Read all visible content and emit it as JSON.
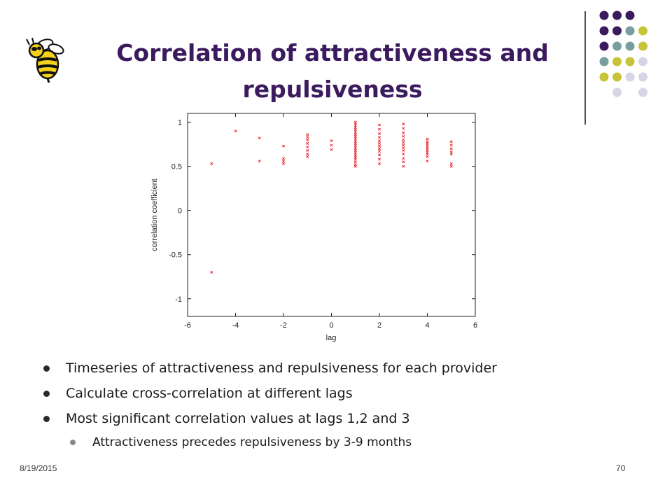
{
  "slide": {
    "title_line1": "Correlation of attractiveness and",
    "title_line2": "repulsiveness",
    "date": "8/19/2015",
    "page_number": "70",
    "title_color": "#3b1a5e"
  },
  "logo": {
    "icon": "yellow-jacket-bee-icon"
  },
  "decoration": {
    "dot_colors": [
      "#3b1a5e",
      "#7a9e9f",
      "#c8c43a",
      "#d6d5e8"
    ]
  },
  "bullets": [
    {
      "text": "Timeseries of attractiveness and repulsiveness for each provider",
      "level": 1
    },
    {
      "text": "Calculate cross-correlation at different lags",
      "level": 1
    },
    {
      "text": "Most significant correlation values at lags 1,2 and 3",
      "level": 1
    },
    {
      "text": "Attractiveness precedes repulsiveness by 3-9 months",
      "level": 2
    }
  ],
  "chart_data": {
    "type": "scatter",
    "xlabel": "lag",
    "ylabel": "correlation coefficient",
    "xlim": [
      -6,
      6
    ],
    "ylim": [
      -1.2,
      1.1
    ],
    "xticks": [
      -6,
      -4,
      -2,
      0,
      2,
      4,
      6
    ],
    "yticks": [
      -1,
      -0.5,
      0,
      0.5,
      1
    ],
    "ytick_labels": [
      "-1",
      "-0.5",
      "0",
      "0.5",
      "1"
    ],
    "marker_color": "#e8202a",
    "grid": false,
    "points": [
      [
        -5,
        0.53
      ],
      [
        -5,
        -0.7
      ],
      [
        -4,
        0.9
      ],
      [
        -3,
        0.82
      ],
      [
        -3,
        0.56
      ],
      [
        -2,
        0.73
      ],
      [
        -2,
        0.59
      ],
      [
        -2,
        0.56
      ],
      [
        -2,
        0.53
      ],
      [
        -1,
        0.86
      ],
      [
        -1,
        0.83
      ],
      [
        -1,
        0.8
      ],
      [
        -1,
        0.76
      ],
      [
        -1,
        0.72
      ],
      [
        -1,
        0.68
      ],
      [
        -1,
        0.64
      ],
      [
        -1,
        0.61
      ],
      [
        0,
        0.79
      ],
      [
        0,
        0.74
      ],
      [
        0,
        0.69
      ],
      [
        1,
        1.0
      ],
      [
        1,
        0.98
      ],
      [
        1,
        0.96
      ],
      [
        1,
        0.94
      ],
      [
        1,
        0.92
      ],
      [
        1,
        0.9
      ],
      [
        1,
        0.88
      ],
      [
        1,
        0.86
      ],
      [
        1,
        0.84
      ],
      [
        1,
        0.82
      ],
      [
        1,
        0.8
      ],
      [
        1,
        0.78
      ],
      [
        1,
        0.76
      ],
      [
        1,
        0.74
      ],
      [
        1,
        0.72
      ],
      [
        1,
        0.7
      ],
      [
        1,
        0.68
      ],
      [
        1,
        0.66
      ],
      [
        1,
        0.64
      ],
      [
        1,
        0.62
      ],
      [
        1,
        0.6
      ],
      [
        1,
        0.58
      ],
      [
        1,
        0.55
      ],
      [
        1,
        0.52
      ],
      [
        1,
        0.5
      ],
      [
        2,
        0.97
      ],
      [
        2,
        0.92
      ],
      [
        2,
        0.87
      ],
      [
        2,
        0.83
      ],
      [
        2,
        0.79
      ],
      [
        2,
        0.76
      ],
      [
        2,
        0.73
      ],
      [
        2,
        0.7
      ],
      [
        2,
        0.67
      ],
      [
        2,
        0.63
      ],
      [
        2,
        0.58
      ],
      [
        2,
        0.53
      ],
      [
        3,
        0.98
      ],
      [
        3,
        0.93
      ],
      [
        3,
        0.88
      ],
      [
        3,
        0.84
      ],
      [
        3,
        0.8
      ],
      [
        3,
        0.77
      ],
      [
        3,
        0.74
      ],
      [
        3,
        0.71
      ],
      [
        3,
        0.68
      ],
      [
        3,
        0.64
      ],
      [
        3,
        0.59
      ],
      [
        3,
        0.55
      ],
      [
        3,
        0.5
      ],
      [
        4,
        0.81
      ],
      [
        4,
        0.78
      ],
      [
        4,
        0.76
      ],
      [
        4,
        0.74
      ],
      [
        4,
        0.72
      ],
      [
        4,
        0.7
      ],
      [
        4,
        0.68
      ],
      [
        4,
        0.66
      ],
      [
        4,
        0.64
      ],
      [
        4,
        0.61
      ],
      [
        4,
        0.56
      ],
      [
        5,
        0.78
      ],
      [
        5,
        0.74
      ],
      [
        5,
        0.7
      ],
      [
        5,
        0.66
      ],
      [
        5,
        0.64
      ],
      [
        5,
        0.53
      ],
      [
        5,
        0.5
      ]
    ]
  }
}
